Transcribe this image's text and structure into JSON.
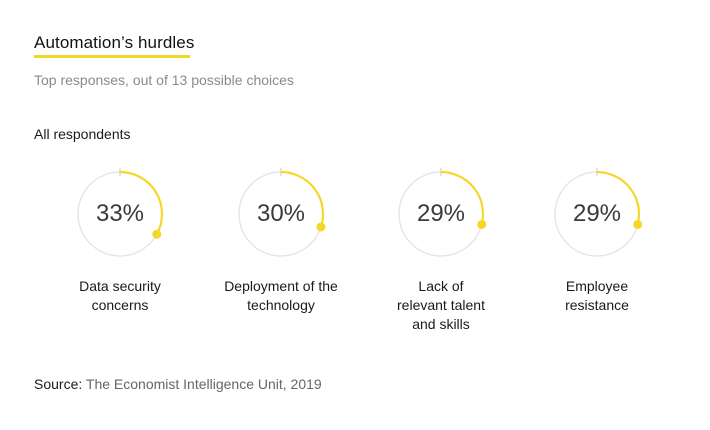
{
  "title": "Automation’s hurdles",
  "subtitle": "Top responses, out of 13 possible choices",
  "group_label": "All respondents",
  "source": {
    "label": "Source:",
    "text": "The Economist Intelligence Unit, 2019"
  },
  "colors": {
    "accent": "#f5d72a",
    "track": "#e3e3e3"
  },
  "chart_data": {
    "type": "pie",
    "title": "Automation’s hurdles",
    "subtitle": "Top responses, out of 13 possible choices",
    "group": "All respondents",
    "unit": "%",
    "categories": [
      "Data security concerns",
      "Deployment of the technology",
      "Lack of relevant talent and skills",
      "Employee resistance"
    ],
    "values": [
      33,
      30,
      29,
      29
    ],
    "value_labels": [
      "33%",
      "30%",
      "29%",
      "29%"
    ],
    "label_lines": [
      [
        "Data security",
        "concerns"
      ],
      [
        "Deployment of the",
        "technology"
      ],
      [
        "Lack of",
        "relevant talent",
        "and skills"
      ],
      [
        "Employee",
        "resistance"
      ]
    ]
  }
}
